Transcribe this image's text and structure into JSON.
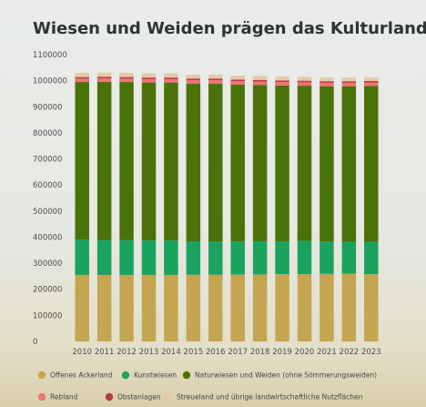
{
  "chart_data": {
    "type": "bar",
    "stacked": true,
    "title": "Wiesen und Weiden prägen das Kulturland",
    "xlabel": "",
    "ylabel": "",
    "ylim": [
      0,
      1100000
    ],
    "yticks": [
      0,
      100000,
      200000,
      300000,
      400000,
      500000,
      600000,
      700000,
      800000,
      900000,
      1000000,
      1100000
    ],
    "ytick_labels": [
      "0",
      "100000",
      "200000",
      "300000",
      "400000",
      "500000",
      "600000",
      "700000",
      "800000",
      "900000",
      "1000000",
      "1100000"
    ],
    "grid": false,
    "legend_position": "bottom",
    "categories": [
      "2010",
      "2011",
      "2012",
      "2013",
      "2014",
      "2015",
      "2016",
      "2017",
      "2018",
      "2019",
      "2020",
      "2021",
      "2022",
      "2023"
    ],
    "series": [
      {
        "name": "Offenes Ackerland",
        "color": "#c5a552",
        "values": [
          255000,
          255000,
          255000,
          255000,
          255000,
          256000,
          256000,
          257000,
          257000,
          258000,
          258000,
          259000,
          260000,
          258000
        ]
      },
      {
        "name": "Kunstwiesen",
        "color": "#19a35f",
        "values": [
          135000,
          133000,
          133000,
          132000,
          132000,
          128000,
          128000,
          126000,
          127000,
          126000,
          128000,
          124000,
          122000,
          124000
        ]
      },
      {
        "name": "Naturwiesen und Weiden (ohne Sömmerungsweiden)",
        "color": "#4b7209",
        "values": [
          605000,
          608000,
          607000,
          606000,
          606000,
          605000,
          605000,
          602000,
          600000,
          598000,
          595000,
          596000,
          597000,
          598000
        ]
      },
      {
        "name": "Rebland",
        "color": "#ee7575",
        "values": [
          13000,
          13000,
          13000,
          13000,
          13000,
          13000,
          13000,
          13000,
          13000,
          13000,
          13000,
          13000,
          13000,
          13000
        ]
      },
      {
        "name": "Obstanlagen",
        "color": "#b83a45",
        "values": [
          6000,
          6000,
          6000,
          6000,
          6000,
          6000,
          6000,
          6000,
          6000,
          6000,
          6000,
          6000,
          6000,
          6000
        ]
      },
      {
        "name": "Streueland und übrige landwirtschaftliche Nutzflächen",
        "color": "#e2cba6",
        "values": [
          16000,
          16000,
          16000,
          16000,
          16000,
          15000,
          15000,
          15000,
          15000,
          15000,
          15000,
          15000,
          14000,
          14000
        ]
      }
    ]
  }
}
